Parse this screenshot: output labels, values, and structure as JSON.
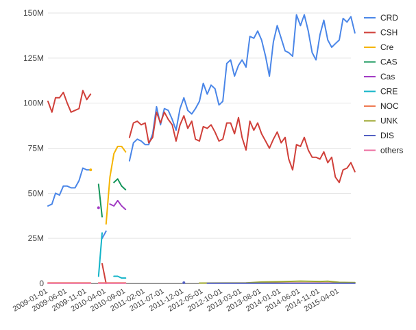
{
  "chart_data": {
    "type": "line",
    "title": "",
    "xlabel": "",
    "ylabel": "",
    "ylim": [
      0,
      150000000
    ],
    "yticks": [
      0,
      25000000,
      50000000,
      75000000,
      100000000,
      125000000,
      150000000
    ],
    "ytick_labels": [
      "0",
      "25M",
      "50M",
      "75M",
      "100M",
      "125M",
      "150M"
    ],
    "x_range": [
      "2009-01-01",
      "2015-07-01"
    ],
    "x_tick_labels": [
      "2009-01-01",
      "2009-06-01",
      "2009-11-01",
      "2010-04-01",
      "2010-09-01",
      "2011-02-01",
      "2011-07-01",
      "2011-12-01",
      "2012-05-01",
      "2012-10-01",
      "2013-03-01",
      "2013-08-01",
      "2014-01-01",
      "2014-06-01",
      "2014-11-01",
      "2015-04-01"
    ],
    "grid": "horizontal",
    "legend_position": "right",
    "series": [
      {
        "name": "CRD",
        "color": "#4a86e8",
        "segments": [
          [
            [
              "2009-01-01",
              43
            ],
            [
              "2009-02-01",
              44
            ],
            [
              "2009-03-01",
              50
            ],
            [
              "2009-04-01",
              49
            ],
            [
              "2009-05-01",
              54
            ],
            [
              "2009-06-01",
              54
            ],
            [
              "2009-07-01",
              53
            ],
            [
              "2009-08-01",
              53
            ],
            [
              "2009-09-01",
              57
            ],
            [
              "2009-10-01",
              64
            ],
            [
              "2009-11-01",
              63
            ],
            [
              "2009-12-01",
              63
            ]
          ],
          [
            [
              "2010-03-01",
              25
            ],
            [
              "2010-04-01",
              29
            ]
          ],
          [
            [
              "2010-10-01",
              68
            ],
            [
              "2010-11-01",
              78
            ],
            [
              "2010-12-01",
              80
            ],
            [
              "2011-01-01",
              79
            ],
            [
              "2011-02-01",
              77
            ],
            [
              "2011-03-01",
              77
            ],
            [
              "2011-04-01",
              83
            ],
            [
              "2011-05-01",
              98
            ],
            [
              "2011-06-01",
              88
            ],
            [
              "2011-07-01",
              97
            ],
            [
              "2011-08-01",
              96
            ],
            [
              "2011-09-01",
              91
            ],
            [
              "2011-10-01",
              85
            ],
            [
              "2011-11-01",
              97
            ],
            [
              "2011-12-01",
              103
            ],
            [
              "2012-01-01",
              96
            ],
            [
              "2012-02-01",
              94
            ],
            [
              "2012-03-01",
              97
            ],
            [
              "2012-04-01",
              101
            ],
            [
              "2012-05-01",
              111
            ],
            [
              "2012-06-01",
              105
            ],
            [
              "2012-07-01",
              110
            ],
            [
              "2012-08-01",
              108
            ],
            [
              "2012-09-01",
              99
            ],
            [
              "2012-10-01",
              101
            ],
            [
              "2012-11-01",
              122
            ],
            [
              "2012-12-01",
              124
            ],
            [
              "2013-01-01",
              115
            ],
            [
              "2013-02-01",
              121
            ],
            [
              "2013-03-01",
              124
            ],
            [
              "2013-04-01",
              120
            ],
            [
              "2013-05-01",
              137
            ],
            [
              "2013-06-01",
              136
            ],
            [
              "2013-07-01",
              140
            ],
            [
              "2013-08-01",
              135
            ],
            [
              "2013-09-01",
              126
            ],
            [
              "2013-10-01",
              115
            ],
            [
              "2013-11-01",
              134
            ],
            [
              "2013-12-01",
              143
            ],
            [
              "2014-01-01",
              136
            ],
            [
              "2014-02-01",
              129
            ],
            [
              "2014-03-01",
              128
            ],
            [
              "2014-04-01",
              126
            ],
            [
              "2014-05-01",
              149
            ],
            [
              "2014-06-01",
              143
            ],
            [
              "2014-07-01",
              149
            ],
            [
              "2014-08-01",
              140
            ],
            [
              "2014-09-01",
              128
            ],
            [
              "2014-10-01",
              124
            ],
            [
              "2014-11-01",
              138
            ],
            [
              "2014-12-01",
              146
            ],
            [
              "2015-01-01",
              135
            ],
            [
              "2015-02-01",
              131
            ],
            [
              "2015-03-01",
              133
            ],
            [
              "2015-04-01",
              135
            ],
            [
              "2015-05-01",
              147
            ],
            [
              "2015-06-01",
              145
            ],
            [
              "2015-07-01",
              148
            ],
            [
              "2015-08-01",
              139
            ]
          ]
        ]
      },
      {
        "name": "CSH",
        "color": "#d0403a",
        "segments": [
          [
            [
              "2009-01-01",
              101
            ],
            [
              "2009-02-01",
              95
            ],
            [
              "2009-03-01",
              103
            ],
            [
              "2009-04-01",
              103
            ],
            [
              "2009-05-01",
              106
            ],
            [
              "2009-06-01",
              100
            ],
            [
              "2009-07-01",
              95
            ],
            [
              "2009-08-01",
              96
            ],
            [
              "2009-09-01",
              97
            ],
            [
              "2009-10-01",
              107
            ],
            [
              "2009-11-01",
              102
            ],
            [
              "2009-12-01",
              105
            ]
          ],
          [
            [
              "2010-03-01",
              11
            ],
            [
              "2010-04-01",
              0
            ]
          ],
          [
            [
              "2010-10-01",
              81
            ],
            [
              "2010-11-01",
              89
            ],
            [
              "2010-12-01",
              90
            ],
            [
              "2011-01-01",
              88
            ],
            [
              "2011-02-01",
              89
            ],
            [
              "2011-03-01",
              78
            ],
            [
              "2011-04-01",
              81
            ],
            [
              "2011-05-01",
              95
            ],
            [
              "2011-06-01",
              89
            ],
            [
              "2011-07-01",
              95
            ],
            [
              "2011-08-01",
              91
            ],
            [
              "2011-09-01",
              88
            ],
            [
              "2011-10-01",
              79
            ],
            [
              "2011-11-01",
              88
            ],
            [
              "2011-12-01",
              93
            ],
            [
              "2012-01-01",
              86
            ],
            [
              "2012-02-01",
              90
            ],
            [
              "2012-03-01",
              80
            ],
            [
              "2012-04-01",
              79
            ],
            [
              "2012-05-01",
              87
            ],
            [
              "2012-06-01",
              86
            ],
            [
              "2012-07-01",
              88
            ],
            [
              "2012-08-01",
              84
            ],
            [
              "2012-09-01",
              79
            ],
            [
              "2012-10-01",
              80
            ],
            [
              "2012-11-01",
              89
            ],
            [
              "2012-12-01",
              89
            ],
            [
              "2013-01-01",
              83
            ],
            [
              "2013-02-01",
              92
            ],
            [
              "2013-03-01",
              81
            ],
            [
              "2013-04-01",
              74
            ],
            [
              "2013-05-01",
              90
            ],
            [
              "2013-06-01",
              85
            ],
            [
              "2013-07-01",
              89
            ],
            [
              "2013-08-01",
              83
            ],
            [
              "2013-09-01",
              79
            ],
            [
              "2013-10-01",
              75
            ],
            [
              "2013-11-01",
              80
            ],
            [
              "2013-12-01",
              84
            ],
            [
              "2014-01-01",
              78
            ],
            [
              "2014-02-01",
              81
            ],
            [
              "2014-03-01",
              69
            ],
            [
              "2014-04-01",
              63
            ],
            [
              "2014-05-01",
              77
            ],
            [
              "2014-06-01",
              76
            ],
            [
              "2014-07-01",
              81
            ],
            [
              "2014-08-01",
              74
            ],
            [
              "2014-09-01",
              70
            ],
            [
              "2014-10-01",
              70
            ],
            [
              "2014-11-01",
              69
            ],
            [
              "2014-12-01",
              73
            ],
            [
              "2015-01-01",
              67
            ],
            [
              "2015-02-01",
              70
            ],
            [
              "2015-03-01",
              59
            ],
            [
              "2015-04-01",
              56
            ],
            [
              "2015-05-01",
              63
            ],
            [
              "2015-06-01",
              64
            ],
            [
              "2015-07-01",
              67
            ],
            [
              "2015-08-01",
              62
            ]
          ]
        ]
      },
      {
        "name": "Cre",
        "color": "#f5b400",
        "segments": [
          [
            [
              "2010-04-01",
              33
            ],
            [
              "2010-05-01",
              59
            ],
            [
              "2010-06-01",
              72
            ],
            [
              "2010-07-01",
              76
            ],
            [
              "2010-08-01",
              76
            ],
            [
              "2010-09-01",
              73
            ]
          ],
          [
            [
              "2009-12-01",
              63
            ]
          ]
        ]
      },
      {
        "name": "CAS",
        "color": "#13955a",
        "segments": [
          [
            [
              "2010-02-01",
              55
            ],
            [
              "2010-03-01",
              37
            ]
          ],
          [
            [
              "2010-06-01",
              56
            ],
            [
              "2010-07-01",
              58
            ],
            [
              "2010-08-01",
              54
            ],
            [
              "2010-09-01",
              52
            ]
          ]
        ]
      },
      {
        "name": "Cas",
        "color": "#a13bc3",
        "segments": [
          [
            [
              "2010-02-01",
              42
            ]
          ],
          [
            [
              "2010-05-01",
              44
            ],
            [
              "2010-06-01",
              43
            ],
            [
              "2010-07-01",
              46
            ],
            [
              "2010-08-01",
              43
            ],
            [
              "2010-09-01",
              41
            ]
          ]
        ]
      },
      {
        "name": "CRE",
        "color": "#13b4c8",
        "segments": [
          [
            [
              "2010-02-01",
              4
            ],
            [
              "2010-03-01",
              28
            ]
          ],
          [
            [
              "2010-06-01",
              4
            ],
            [
              "2010-07-01",
              4
            ],
            [
              "2010-08-01",
              3
            ],
            [
              "2010-09-01",
              3
            ]
          ]
        ]
      },
      {
        "name": "NOC",
        "color": "#ee7a52",
        "segments": [
          [
            [
              "2009-01-01",
              0.3
            ],
            [
              "2009-12-01",
              0.3
            ]
          ],
          [
            [
              "2010-02-01",
              0.3
            ],
            [
              "2010-09-01",
              0.3
            ]
          ],
          [
            [
              "2012-04-01",
              0.2
            ],
            [
              "2015-08-01",
              0.3
            ]
          ]
        ]
      },
      {
        "name": "UNK",
        "color": "#9ba62c",
        "segments": [
          [
            [
              "2012-04-01",
              0.2
            ],
            [
              "2013-04-01",
              0.3
            ],
            [
              "2013-08-01",
              0.8
            ],
            [
              "2014-01-01",
              1.0
            ],
            [
              "2014-06-01",
              1.3
            ],
            [
              "2014-11-01",
              1.1
            ],
            [
              "2015-01-01",
              1.2
            ],
            [
              "2015-04-01",
              0.6
            ],
            [
              "2015-08-01",
              0.5
            ]
          ]
        ]
      },
      {
        "name": "DIS",
        "color": "#5360c2",
        "segments": [
          [
            [
              "2011-12-01",
              0.4
            ]
          ],
          [
            [
              "2012-06-01",
              0.1
            ],
            [
              "2015-08-01",
              0.1
            ]
          ]
        ]
      },
      {
        "name": "others",
        "color": "#ec6ea0",
        "segments": [
          [
            [
              "2009-01-01",
              0.1
            ],
            [
              "2009-12-01",
              0.1
            ]
          ],
          [
            [
              "2010-02-01",
              0.1
            ],
            [
              "2010-09-01",
              0.1
            ]
          ]
        ]
      }
    ]
  }
}
